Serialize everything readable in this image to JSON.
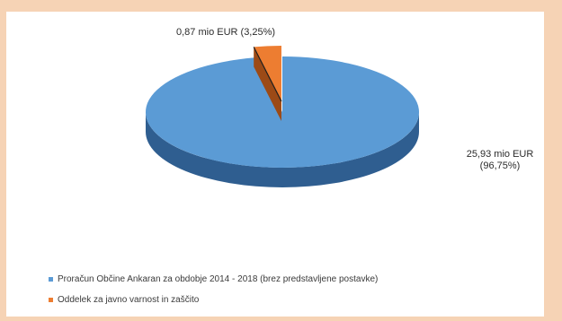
{
  "chart_data": {
    "type": "pie",
    "title": "",
    "slices": [
      {
        "name": "Proračun Občine Ankaran za obdobje 2014 - 2018 (brez predstavljene postavke)",
        "value": 25.93,
        "percent": 96.75,
        "label_line1": "25,93 mio EUR",
        "label_line2": "(96,75%)",
        "color": "#5b9bd5",
        "side_color": "#2f5e90"
      },
      {
        "name": "Oddelek za javno varnost in zaščito",
        "value": 0.87,
        "percent": 3.25,
        "label": "0,87 mio EUR (3,25%)",
        "color": "#ed7d31",
        "side_color": "#9c4a16"
      }
    ],
    "legend_position": "bottom-left",
    "is_3d": true,
    "exploded_slice": 1
  }
}
